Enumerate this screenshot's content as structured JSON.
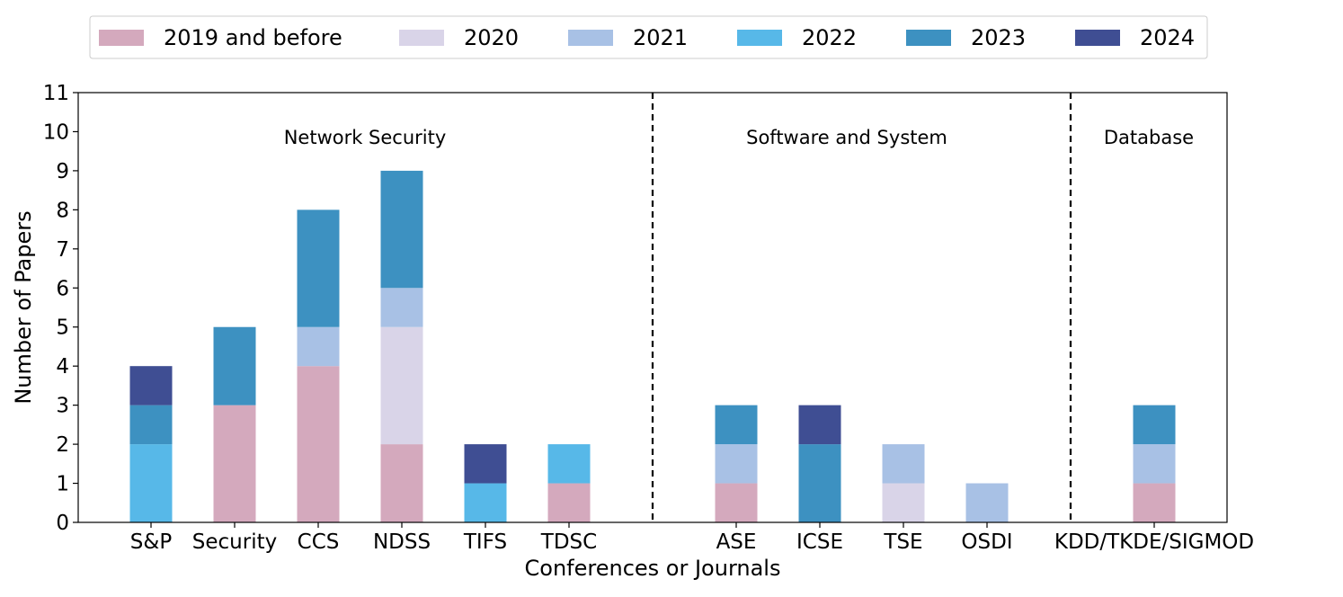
{
  "chart_data": {
    "type": "bar",
    "stacked": true,
    "xlabel": "Conferences or Journals",
    "ylabel": "Number of Papers",
    "ylim": [
      0,
      11
    ],
    "yticks": [
      0,
      1,
      2,
      3,
      4,
      5,
      6,
      7,
      8,
      9,
      10,
      11
    ],
    "categories": [
      "S&P",
      "Security",
      "CCS",
      "NDSS",
      "TIFS",
      "TDSC",
      "ASE",
      "ICSE",
      "TSE",
      "OSDI",
      "KDD/TKDE/SIGMOD"
    ],
    "series": [
      {
        "name": "2019 and before",
        "color": "#d4a9bd",
        "values": [
          0,
          3,
          4,
          2,
          0,
          1,
          1,
          0,
          0,
          0,
          1
        ]
      },
      {
        "name": "2020",
        "color": "#d9d4e8",
        "values": [
          0,
          0,
          0,
          3,
          0,
          0,
          0,
          0,
          1,
          0,
          0
        ]
      },
      {
        "name": "2021",
        "color": "#a8c1e5",
        "values": [
          0,
          0,
          1,
          1,
          0,
          0,
          1,
          0,
          1,
          1,
          1
        ]
      },
      {
        "name": "2022",
        "color": "#57b8e8",
        "values": [
          2,
          0,
          0,
          0,
          1,
          1,
          0,
          0,
          0,
          0,
          0
        ]
      },
      {
        "name": "2023",
        "color": "#3d91c1",
        "values": [
          1,
          2,
          3,
          3,
          0,
          0,
          1,
          2,
          0,
          0,
          1
        ]
      },
      {
        "name": "2024",
        "color": "#3f4e93",
        "values": [
          1,
          0,
          0,
          0,
          1,
          0,
          0,
          1,
          0,
          0,
          0
        ]
      }
    ],
    "groups": [
      {
        "label": "Network Security",
        "categories": [
          "S&P",
          "Security",
          "CCS",
          "NDSS",
          "TIFS",
          "TDSC"
        ]
      },
      {
        "label": "Software and System",
        "categories": [
          "ASE",
          "ICSE",
          "TSE",
          "OSDI"
        ]
      },
      {
        "label": "Database",
        "categories": [
          "KDD/TKDE/SIGMOD"
        ]
      }
    ],
    "legend_position": "top-center"
  }
}
